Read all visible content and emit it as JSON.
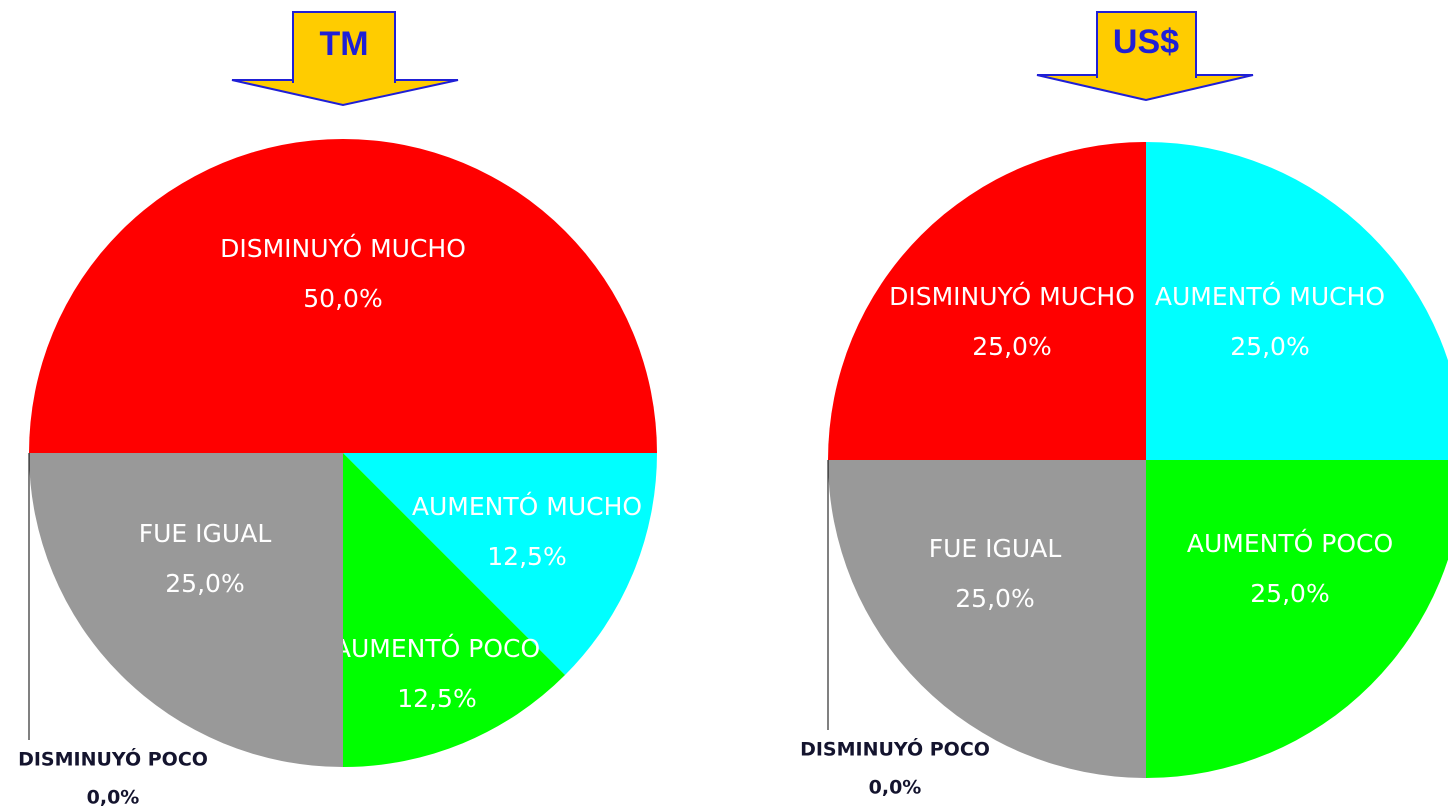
{
  "chart_data": [
    {
      "type": "pie",
      "title": "TM",
      "categories": [
        "DISMINUYÓ MUCHO",
        "AUMENTÓ MUCHO",
        "AUMENTÓ POCO",
        "FUE IGUAL",
        "DISMINUYÓ POCO"
      ],
      "values": [
        50,
        12.5,
        12.5,
        25,
        0
      ],
      "value_labels": [
        "50,0%",
        "12,5%",
        "12,5%",
        "25,0%",
        "0,0%"
      ],
      "colors": [
        "#ff0000",
        "#00ffff",
        "#00ff00",
        "#999999",
        "#ffff00"
      ]
    },
    {
      "type": "pie",
      "title": "US$",
      "categories": [
        "DISMINUYÓ MUCHO",
        "AUMENTÓ MUCHO",
        "AUMENTÓ POCO",
        "FUE IGUAL",
        "DISMINUYÓ POCO"
      ],
      "values": [
        25,
        25,
        25,
        25,
        0
      ],
      "value_labels": [
        "25,0%",
        "25,0%",
        "25,0%",
        "25,0%",
        "0,0%"
      ],
      "colors": [
        "#ff0000",
        "#00ffff",
        "#00ff00",
        "#999999",
        "#ffff00"
      ]
    }
  ]
}
